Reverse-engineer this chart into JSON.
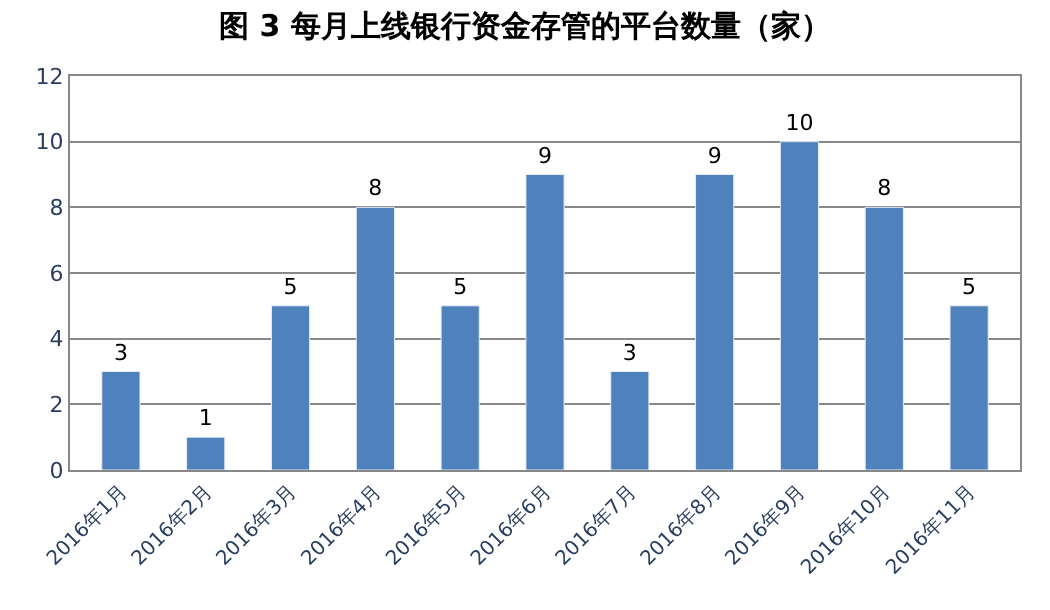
{
  "chart_data": {
    "type": "bar",
    "title": "图 3 每月上线银行资金存管的平台数量（家）",
    "categories": [
      "2016年1月",
      "2016年2月",
      "2016年3月",
      "2016年4月",
      "2016年5月",
      "2016年6月",
      "2016年7月",
      "2016年8月",
      "2016年9月",
      "2016年10月",
      "2016年11月"
    ],
    "values": [
      3,
      1,
      5,
      8,
      5,
      9,
      3,
      9,
      10,
      8,
      5
    ],
    "color": "#4f81bd",
    "ylim": [
      0,
      12
    ],
    "yticks": [
      0,
      2,
      4,
      6,
      8,
      10,
      12
    ],
    "grid": "y",
    "data_labels": true
  }
}
